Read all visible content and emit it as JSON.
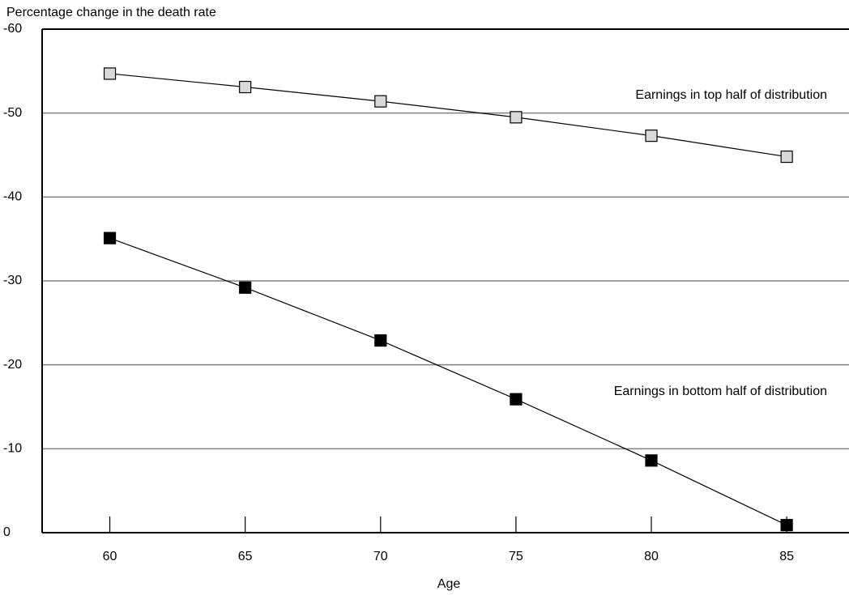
{
  "chart_data": {
    "type": "line",
    "y_label": "Percentage change in the death rate",
    "x_label": "Age",
    "x": [
      60,
      65,
      70,
      75,
      80,
      85
    ],
    "series": [
      {
        "name": "Earnings in top half of distribution",
        "color": "#d9d9d9",
        "values": [
          -54.7,
          -53.1,
          -51.4,
          -49.5,
          -47.3,
          -44.8
        ]
      },
      {
        "name": "Earnings in bottom half of distribution",
        "color": "#000000",
        "values": [
          -35.1,
          -29.2,
          -22.9,
          -15.9,
          -8.6,
          -0.9
        ]
      }
    ],
    "xlim": [
      57.5,
      87.3
    ],
    "xticks": [
      60,
      65,
      70,
      75,
      80,
      85
    ],
    "ylim": [
      0,
      -60
    ],
    "yticks": [
      0,
      -10,
      -20,
      -30,
      -40,
      -50,
      -60
    ],
    "grid": true
  }
}
